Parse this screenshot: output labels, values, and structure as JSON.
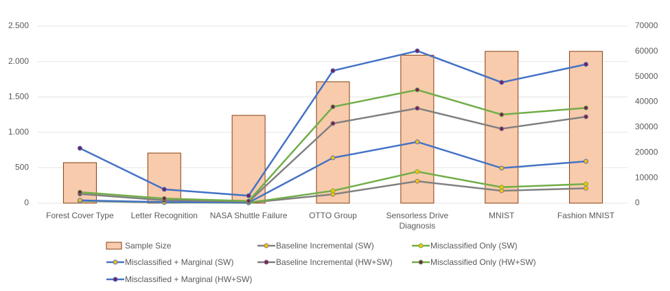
{
  "chart_data": {
    "type": "combo",
    "categories": [
      "Forest Cover Type",
      "Letter Recognition",
      "NASA Shuttle Failure",
      "OTTO Group",
      "Sensorless Drive Diagnosis",
      "MNIST",
      "Fashion MNIST"
    ],
    "ylim": [
      0,
      2500
    ],
    "yticks": [
      0,
      500,
      {
        "value": 1000,
        "label": "1.000"
      },
      {
        "value": 1500,
        "label": "1.500"
      },
      {
        "value": 2000,
        "label": "2.000"
      },
      {
        "value": 2500,
        "label": "2.500"
      }
    ],
    "y2lim": [
      0,
      70000
    ],
    "y2ticks": [
      0,
      10000,
      20000,
      30000,
      40000,
      50000,
      60000,
      70000
    ],
    "grid": true,
    "series": [
      {
        "name": "Sample Size",
        "type": "bar",
        "axis": "y2",
        "color": "#f8cbad",
        "edge_color": "#843c0c",
        "values": [
          16000,
          19800,
          34700,
          48000,
          58500,
          60000,
          60000
        ]
      },
      {
        "name": "Baseline Incremental (SW)",
        "type": "line",
        "color": "#808080",
        "marker_color": "#ffc000",
        "values": [
          30,
          10,
          5,
          125,
          310,
          175,
          210
        ]
      },
      {
        "name": "Misclassified Only (SW)",
        "type": "line",
        "color": "#70ad47",
        "marker_color": "#ffc000",
        "values": [
          35,
          12,
          6,
          175,
          445,
          225,
          270
        ]
      },
      {
        "name": "Misclassified + Marginal (SW)",
        "type": "line",
        "color": "#4472c4",
        "marker_color": "#ffc000",
        "values": [
          40,
          15,
          8,
          640,
          865,
          495,
          590
        ]
      },
      {
        "name": "Baseline Incremental (HW+SW)",
        "type": "line",
        "color": "#808080",
        "marker_color": "#7b1e5a",
        "values": [
          130,
          40,
          20,
          1125,
          1340,
          1050,
          1220
        ]
      },
      {
        "name": "Misclassified Only (HW+SW)",
        "type": "line",
        "color": "#70ad47",
        "marker_color": "#7b1e5a",
        "values": [
          155,
          65,
          30,
          1360,
          1600,
          1250,
          1345
        ]
      },
      {
        "name": "Misclassified + Marginal (HW+SW)",
        "type": "line",
        "color": "#4472c4",
        "marker_color": "#7b1e5a",
        "values": [
          775,
          195,
          105,
          1870,
          2150,
          1705,
          1960
        ]
      }
    ]
  }
}
